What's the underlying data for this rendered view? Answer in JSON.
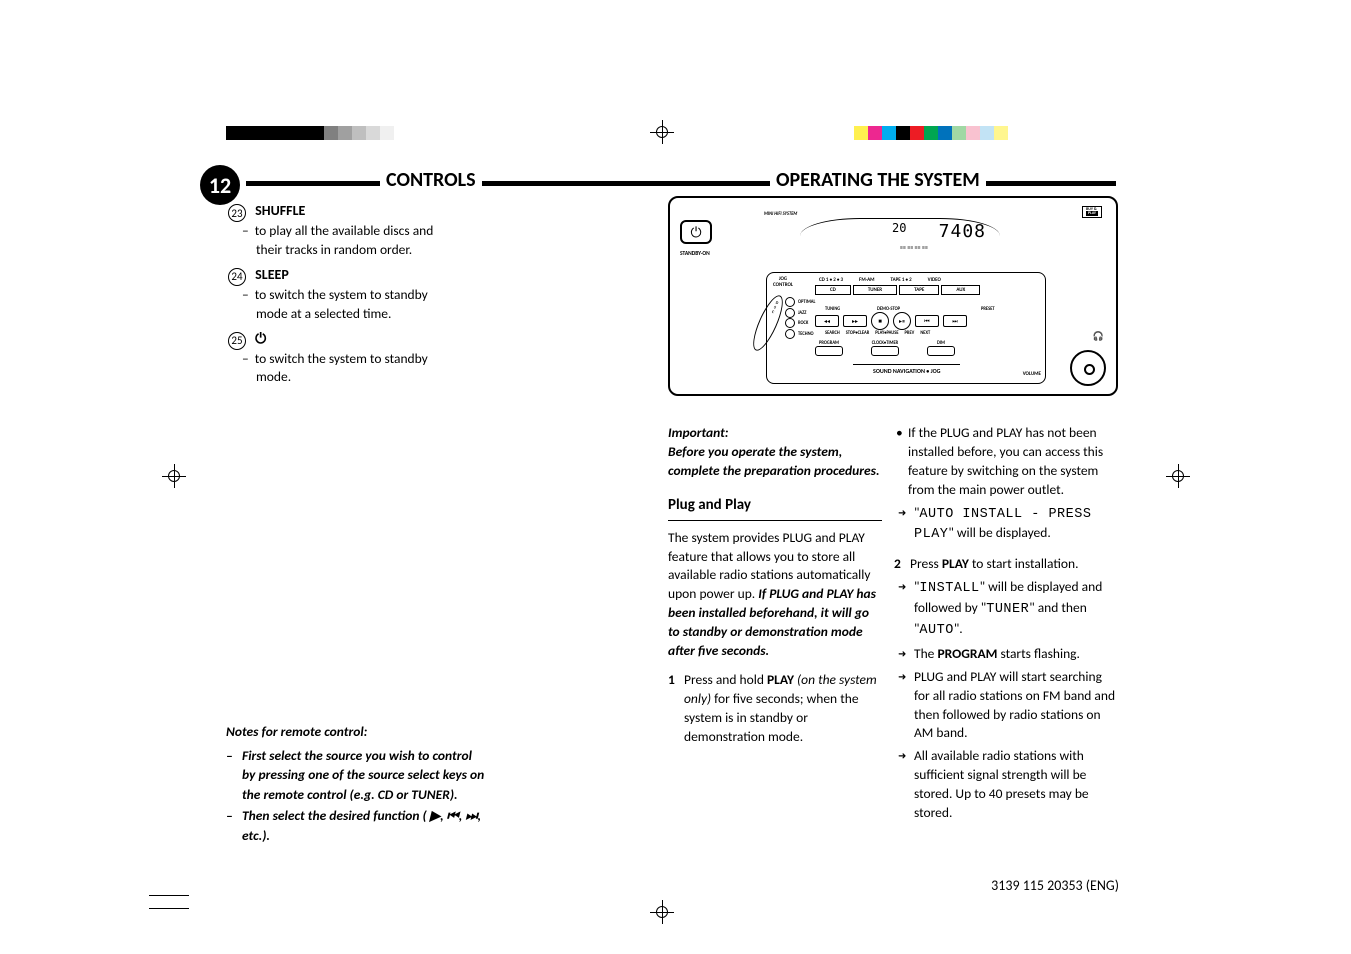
{
  "page_number": "12",
  "headings": {
    "left": "CONTROLS",
    "right": "OPERATING THE SYSTEM"
  },
  "items": {
    "shuffle": {
      "num": "23",
      "title": "SHUFFLE",
      "desc": "to play all the available discs and their tracks in random order."
    },
    "sleep": {
      "num": "24",
      "title": "SLEEP",
      "desc": "to switch the system to standby mode at a selected time."
    },
    "power": {
      "num": "25",
      "title_glyph": "⏻",
      "desc": "to switch the system to standby mode."
    }
  },
  "notes": {
    "header": "Notes for remote control:",
    "line1": "First select the source you wish to control by pressing one of the source select keys on the remote control (e.g.  CD or TUNER).",
    "line2": "Then select the desired function ( ▶, ⏮, ⏭,  etc.)."
  },
  "diagram": {
    "mini_label": "MINI HIFI SYSTEM",
    "standby": "STANDBY-ON",
    "lcd_small": "20",
    "lcd_big": "7408",
    "jog": "JOG\nCONTROL",
    "side_btns": [
      "OPTIMAL",
      "JAZZ",
      "ROCK",
      "TECHNO"
    ],
    "tabs_top": [
      "CD 1 • 2 • 3",
      "FM-AM",
      "TAPE 1 • 2",
      "VIDEO"
    ],
    "tabs_bot": [
      "CD",
      "TUNER",
      "TAPE",
      "AUX"
    ],
    "tiny_row": [
      "TUNING",
      "DEMO-STOP",
      "",
      "PRESET"
    ],
    "btn_syms": [
      "◂◂",
      "▸▸",
      "■",
      "▸⏸",
      "⏮",
      "⏭"
    ],
    "label_row": [
      "SEARCH",
      "STOP•CLEAR",
      "PLAY•PAUSE",
      "PREV",
      "NEXT"
    ],
    "rect_row": [
      "PROGRAM",
      "CLOCK•TIMER",
      "DIM"
    ],
    "sound_nav": "SOUND NAVIGATION • JOG",
    "volume": "VOLUME",
    "buy_play_top": "BUY &",
    "buy_play_bot": "PLAY"
  },
  "col_a": {
    "important_label": "Important:",
    "important_text": "Before you operate the system, complete the preparation procedures.",
    "heading": "Plug and Play",
    "para1_a": "The system provides PLUG and PLAY feature that allows you to store all available radio stations automatically upon power up. ",
    "para1_b": "If PLUG and PLAY has been installed beforehand, it will go to standby or demonstration mode after five seconds.",
    "step1_num": "1",
    "step1_a": "Press and hold ",
    "step1_bold": "PLAY",
    "step1_b": " (on the system only) ",
    "step1_c": "for five seconds; when the system is in standby or demonstration mode."
  },
  "col_b": {
    "bullet1": "If the PLUG and PLAY has not been installed before, you can access this feature by switching on the system from the main power outlet.",
    "arrow1a": "\"",
    "arrow1b": "AUTO INSTALL - PRESS PLAY",
    "arrow1c": "\" will be displayed.",
    "step2_num": "2",
    "step2_a": "Press ",
    "step2_bold": "PLAY",
    "step2_b": " to start installation.",
    "arrow2a": "\"",
    "arrow2b": "INSTALL",
    "arrow2c": "\" will be displayed and followed by \"",
    "arrow2d": "TUNER",
    "arrow2e": "\" and then \"",
    "arrow2f": "AUTO",
    "arrow2g": "\".",
    "arrow3a": "The ",
    "arrow3b": "PROGRAM",
    "arrow3c": " starts flashing.",
    "arrow4": "PLUG and PLAY will start searching for all radio stations on FM band and then followed by radio stations on AM band.",
    "arrow5": "All available radio stations with sufficient signal strength will be stored. Up to 40 presets may be stored."
  },
  "footer_code": "3139 115 20353 (ENG)",
  "color_bar_left": [
    "#000000",
    "#000000",
    "#000000",
    "#000000",
    "#000000",
    "#000000",
    "#000000",
    "#808080",
    "#a0a0a0",
    "#bfbfbf",
    "#d9d9d9",
    "#f0f0f0",
    "#ffffff"
  ],
  "color_bar_right": [
    "#ffffff",
    "#fff04f",
    "#ed2790",
    "#00adef",
    "#000000",
    "#ed1c24",
    "#00a651",
    "#0072bc",
    "#a0d8a4",
    "#f9c2d0",
    "#c2e3f5",
    "#fff68f"
  ],
  "typography": {
    "body_font": "Gill Sans",
    "body_size_pt": 10,
    "heading_size_pt": 15
  }
}
